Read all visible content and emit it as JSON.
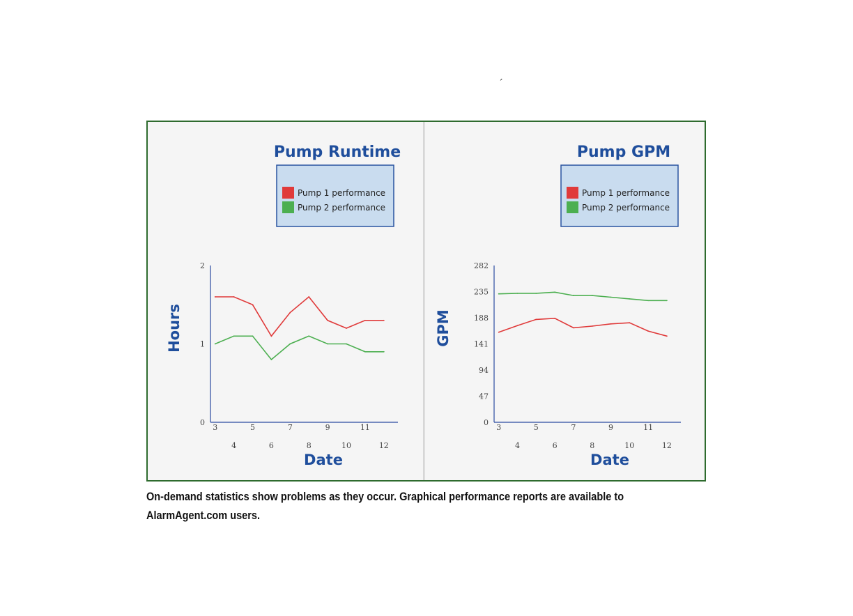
{
  "stray_mark": "´",
  "legend_colors": {
    "pump1": "#e03a3a",
    "pump2": "#4caf50"
  },
  "chart_data": [
    {
      "type": "line",
      "title": "Pump Runtime",
      "xlabel": "Date",
      "ylabel": "Hours",
      "x": [
        3,
        4,
        5,
        6,
        7,
        8,
        9,
        10,
        11,
        12
      ],
      "x_ticks": [
        3,
        4,
        5,
        6,
        7,
        8,
        9,
        10,
        11,
        12
      ],
      "y_ticks": [
        0,
        1,
        2
      ],
      "ylim": [
        0,
        2
      ],
      "xlim": [
        2.75,
        12.75
      ],
      "legend": "top-center",
      "grid": false,
      "series": [
        {
          "name": "Pump 1 performance",
          "color": "#e03a3a",
          "values": [
            1.6,
            1.6,
            1.5,
            1.1,
            1.4,
            1.6,
            1.3,
            1.2,
            1.3,
            1.3
          ]
        },
        {
          "name": "Pump 2 performance",
          "color": "#4caf50",
          "values": [
            1.0,
            1.1,
            1.1,
            0.8,
            1.0,
            1.1,
            1.0,
            1.0,
            0.9,
            0.9
          ]
        }
      ]
    },
    {
      "type": "line",
      "title": "Pump GPM",
      "xlabel": "Date",
      "ylabel": "GPM",
      "x": [
        3,
        4,
        5,
        6,
        7,
        8,
        9,
        10,
        11,
        12
      ],
      "x_ticks": [
        3,
        4,
        5,
        6,
        7,
        8,
        9,
        10,
        11,
        12
      ],
      "y_ticks": [
        0,
        47,
        94,
        141,
        188,
        235,
        282
      ],
      "ylim": [
        0,
        282
      ],
      "xlim": [
        2.75,
        12.75
      ],
      "legend": "top-center",
      "grid": false,
      "series": [
        {
          "name": "Pump 1 performance",
          "color": "#e03a3a",
          "values": [
            162,
            174,
            185,
            187,
            170,
            173,
            177,
            179,
            164,
            155
          ]
        },
        {
          "name": "Pump 2 performance",
          "color": "#4caf50",
          "values": [
            231,
            232,
            232,
            234,
            228,
            228,
            225,
            222,
            219,
            219
          ]
        }
      ]
    }
  ],
  "caption": "On-demand statistics show problems as they occur. Graphical performance reports are available to AlarmAgent.com users."
}
